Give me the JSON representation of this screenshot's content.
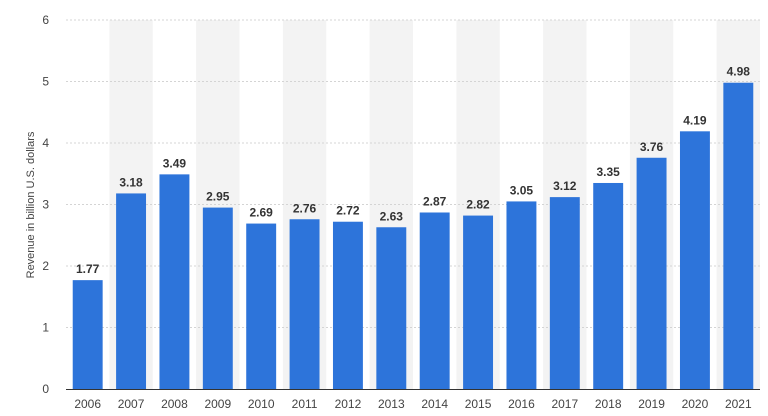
{
  "chart_data": {
    "type": "bar",
    "categories": [
      "2006",
      "2007",
      "2008",
      "2009",
      "2010",
      "2011",
      "2012",
      "2013",
      "2014",
      "2015",
      "2016",
      "2017",
      "2018",
      "2019",
      "2020",
      "2021"
    ],
    "values": [
      1.77,
      3.18,
      3.49,
      2.95,
      2.69,
      2.76,
      2.72,
      2.63,
      2.87,
      2.82,
      3.05,
      3.12,
      3.35,
      3.76,
      4.19,
      4.98
    ],
    "value_labels": [
      "1.77",
      "3.18",
      "3.49",
      "2.95",
      "2.69",
      "2.76",
      "2.72",
      "2.63",
      "2.87",
      "2.82",
      "3.05",
      "3.12",
      "3.35",
      "3.76",
      "4.19",
      "4.98"
    ],
    "title": "",
    "xlabel": "",
    "ylabel": "Revenue in billion U.S. dollars",
    "ylim": [
      0,
      6
    ],
    "yticks": [
      "0",
      "1",
      "2",
      "3",
      "4",
      "5",
      "6"
    ],
    "grid": "horizontal dashed",
    "bar_color": "#2d74da",
    "band_color": "#f3f3f3"
  }
}
